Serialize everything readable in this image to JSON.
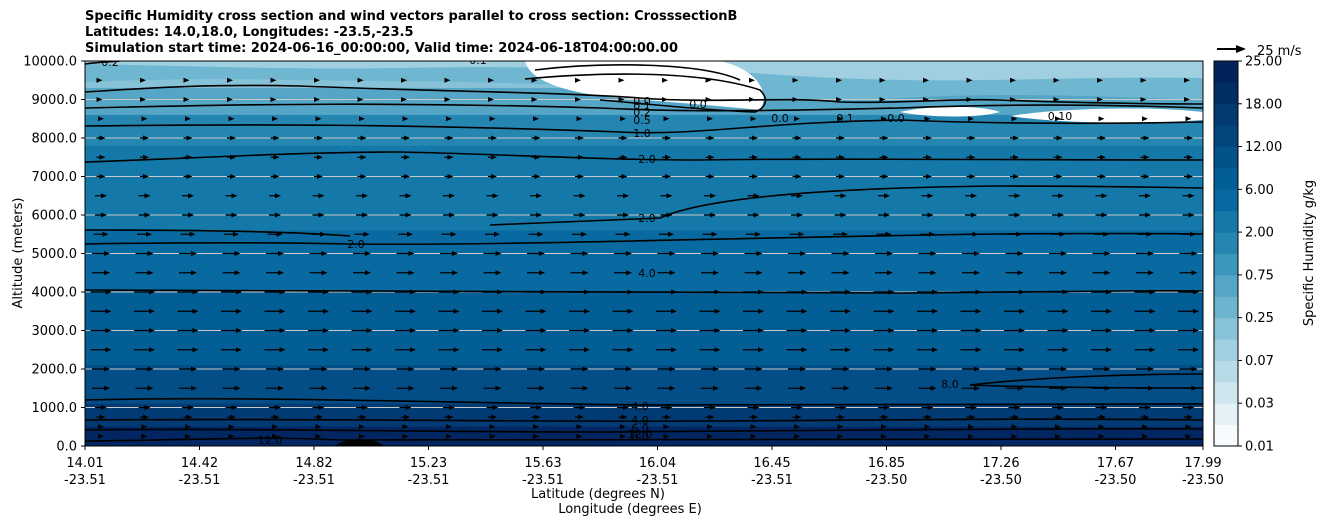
{
  "title": {
    "line1": "Specific Humidity cross section and wind vectors parallel to cross section: CrosssectionB",
    "line2": "Latitudes: 14.0,18.0, Longitudes: -23.5,-23.5",
    "line3": "Simulation start time: 2024-06-16_00:00:00, Valid time: 2024-06-18T04:00:00.00"
  },
  "chart_data": {
    "type": "heatmap",
    "description_variable": "Specific Humidity",
    "ylabel": "Altitude (meters)",
    "xlabel_lat": "Latitude (degrees N)",
    "xlabel_lon": "Longitude (degrees E)",
    "ylim": [
      0,
      10000
    ],
    "y_ticks": [
      "0.0",
      "1000.0",
      "2000.0",
      "3000.0",
      "4000.0",
      "5000.0",
      "6000.0",
      "7000.0",
      "8000.0",
      "9000.0",
      "10000.0"
    ],
    "x_ticks": [
      {
        "lat": "14.01",
        "lon": "-23.51"
      },
      {
        "lat": "14.42",
        "lon": "-23.51"
      },
      {
        "lat": "14.82",
        "lon": "-23.51"
      },
      {
        "lat": "15.23",
        "lon": "-23.51"
      },
      {
        "lat": "15.63",
        "lon": "-23.51"
      },
      {
        "lat": "16.04",
        "lon": "-23.51"
      },
      {
        "lat": "16.45",
        "lon": "-23.51"
      },
      {
        "lat": "16.85",
        "lon": "-23.50"
      },
      {
        "lat": "17.26",
        "lon": "-23.50"
      },
      {
        "lat": "17.67",
        "lon": "-23.50"
      },
      {
        "lat": "17.99",
        "lon": "-23.50"
      }
    ],
    "colorbar": {
      "label": "Specific Humidity g/kg",
      "levels": [
        0.01,
        0.02,
        0.03,
        0.05,
        0.07,
        0.1,
        0.25,
        0.5,
        0.75,
        1.0,
        2.0,
        4.0,
        6.0,
        8.0,
        12.0,
        15.0,
        18.0,
        21.0,
        25.0
      ],
      "tick_labels": [
        "0.01",
        "0.03",
        "0.07",
        "0.25",
        "0.75",
        "2.00",
        "6.00",
        "12.00",
        "18.00",
        "25.00"
      ],
      "colors": [
        "#f7fbfd",
        "#e4f1f6",
        "#cfe6ef",
        "#b8dbe8",
        "#a0cfe0",
        "#88c2d8",
        "#6db4cf",
        "#55a6c6",
        "#3c97bc",
        "#2686b2",
        "#1478a8",
        "#086aa0",
        "#045e96",
        "#03528a",
        "#03467e",
        "#033a72",
        "#022e66",
        "#01235a"
      ]
    },
    "quiver_key": {
      "label": "25 m/s",
      "value": 25
    },
    "humidity_layers_top_altitude_m": [
      500,
      1100,
      2100,
      4000,
      5600,
      7800,
      8600,
      9300,
      10000
    ],
    "contour_labels": [
      "0.2",
      "0.1",
      "0.0",
      "0.1",
      "0.2",
      "0.5",
      "1.0",
      "2.0",
      "2.0",
      "2.0",
      "4.0",
      "8.0",
      "4.0",
      "4.0",
      "6.0",
      "8.0",
      "12.0",
      "12.0",
      "0.0",
      "0.1",
      "0.0",
      "0.0",
      "0.10"
    ],
    "wind_rows_altitude_m": [
      250,
      500,
      750,
      1000,
      1500,
      2000,
      2500,
      3000,
      3500,
      4000,
      4500,
      5000,
      5500,
      6000,
      6500,
      7000,
      7500,
      8000,
      8500,
      9000,
      9500
    ],
    "wind_speed_by_row_ms": [
      2,
      2,
      3,
      4,
      6,
      6,
      7,
      7,
      7,
      7,
      6,
      6,
      5,
      4,
      4,
      3,
      3,
      3,
      2,
      1,
      1
    ]
  }
}
